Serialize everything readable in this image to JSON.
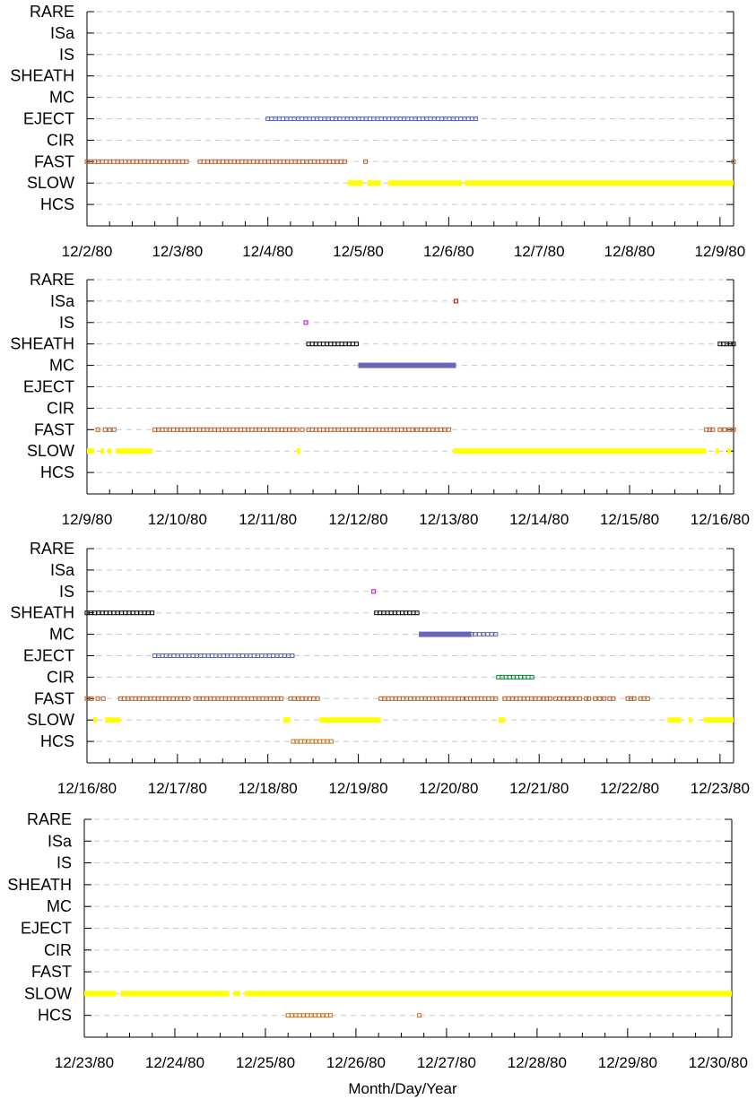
{
  "chart_data": {
    "type": "scatter",
    "xlabel": "Month/Day/Year",
    "categories": [
      "RARE",
      "ISa",
      "IS",
      "SHEATH",
      "MC",
      "EJECT",
      "CIR",
      "FAST",
      "SLOW",
      "HCS"
    ],
    "colors": {
      "RARE": "#808080",
      "ISa": "#c00000",
      "IS": "#cc00cc",
      "SHEATH": "#000000",
      "MC": "#6666bb",
      "EJECT": "#5566cc",
      "CIR": "#008a3a",
      "FAST": "#b5602a",
      "SLOW": "#ffff00",
      "HCS": "#c8741c"
    },
    "grid": true,
    "panels": [
      {
        "x_ticks": [
          "12/2/80",
          "12/3/80",
          "12/4/80",
          "12/5/80",
          "12/6/80",
          "12/7/80",
          "12/8/80",
          "12/9/80"
        ],
        "xlim_days": [
          0,
          7.15
        ],
        "intervals": [
          {
            "category": "EJECT",
            "start": 2.0,
            "end": 4.3,
            "style": "hollow"
          },
          {
            "category": "FAST",
            "start": 0.0,
            "end": 1.1,
            "style": "hollow"
          },
          {
            "category": "FAST",
            "start": 1.25,
            "end": 2.85,
            "style": "hollow"
          },
          {
            "category": "FAST",
            "start": 3.08,
            "end": 3.08,
            "style": "hollow"
          },
          {
            "category": "FAST",
            "start": 7.15,
            "end": 7.15,
            "style": "hollow"
          },
          {
            "category": "SLOW",
            "start": 2.88,
            "end": 3.05,
            "style": "solid"
          },
          {
            "category": "SLOW",
            "start": 3.1,
            "end": 3.25,
            "style": "solid"
          },
          {
            "category": "SLOW",
            "start": 3.33,
            "end": 4.15,
            "style": "solid"
          },
          {
            "category": "SLOW",
            "start": 4.18,
            "end": 7.15,
            "style": "solid"
          }
        ]
      },
      {
        "x_ticks": [
          "12/9/80",
          "12/10/80",
          "12/11/80",
          "12/12/80",
          "12/13/80",
          "12/14/80",
          "12/15/80",
          "12/16/80"
        ],
        "xlim_days": [
          0,
          7.15
        ],
        "intervals": [
          {
            "category": "ISa",
            "start": 4.08,
            "end": 4.08,
            "style": "hollow"
          },
          {
            "category": "IS",
            "start": 2.42,
            "end": 2.42,
            "style": "hollow"
          },
          {
            "category": "SHEATH",
            "start": 2.45,
            "end": 2.98,
            "style": "hollow"
          },
          {
            "category": "SHEATH",
            "start": 7.0,
            "end": 7.15,
            "style": "hollow"
          },
          {
            "category": "MC",
            "start": 3.0,
            "end": 4.08,
            "style": "solid"
          },
          {
            "category": "FAST",
            "start": 0.12,
            "end": 0.12,
            "style": "hollow"
          },
          {
            "category": "FAST",
            "start": 0.2,
            "end": 0.3,
            "style": "hollow"
          },
          {
            "category": "FAST",
            "start": 0.75,
            "end": 2.32,
            "style": "hollow"
          },
          {
            "category": "FAST",
            "start": 2.38,
            "end": 2.38,
            "style": "hollow"
          },
          {
            "category": "FAST",
            "start": 2.45,
            "end": 3.6,
            "style": "hollow"
          },
          {
            "category": "FAST",
            "start": 3.65,
            "end": 4.0,
            "style": "hollow"
          },
          {
            "category": "FAST",
            "start": 6.85,
            "end": 6.92,
            "style": "hollow"
          },
          {
            "category": "FAST",
            "start": 7.0,
            "end": 7.1,
            "style": "hollow"
          },
          {
            "category": "FAST",
            "start": 7.15,
            "end": 7.15,
            "style": "hollow"
          },
          {
            "category": "SLOW",
            "start": 0.0,
            "end": 0.08,
            "style": "solid"
          },
          {
            "category": "SLOW",
            "start": 0.15,
            "end": 0.18,
            "style": "solid"
          },
          {
            "category": "SLOW",
            "start": 0.23,
            "end": 0.27,
            "style": "solid"
          },
          {
            "category": "SLOW",
            "start": 0.32,
            "end": 0.72,
            "style": "solid"
          },
          {
            "category": "SLOW",
            "start": 2.32,
            "end": 2.35,
            "style": "solid"
          },
          {
            "category": "SLOW",
            "start": 4.05,
            "end": 6.85,
            "style": "solid"
          },
          {
            "category": "SLOW",
            "start": 6.95,
            "end": 6.97,
            "style": "solid"
          },
          {
            "category": "SLOW",
            "start": 7.08,
            "end": 7.12,
            "style": "solid"
          }
        ]
      },
      {
        "x_ticks": [
          "12/16/80",
          "12/17/80",
          "12/18/80",
          "12/19/80",
          "12/20/80",
          "12/21/80",
          "12/22/80",
          "12/23/80"
        ],
        "xlim_days": [
          0,
          7.15
        ],
        "intervals": [
          {
            "category": "IS",
            "start": 3.17,
            "end": 3.17,
            "style": "hollow"
          },
          {
            "category": "SHEATH",
            "start": 0.0,
            "end": 0.72,
            "style": "hollow"
          },
          {
            "category": "SHEATH",
            "start": 3.2,
            "end": 3.65,
            "style": "hollow"
          },
          {
            "category": "MC",
            "start": 3.67,
            "end": 4.25,
            "style": "solid"
          },
          {
            "category": "MC",
            "start": 4.25,
            "end": 4.52,
            "style": "hollow"
          },
          {
            "category": "EJECT",
            "start": 0.75,
            "end": 2.27,
            "style": "hollow"
          },
          {
            "category": "CIR",
            "start": 4.55,
            "end": 4.92,
            "style": "hollow"
          },
          {
            "category": "FAST",
            "start": 0.0,
            "end": 0.05,
            "style": "hollow"
          },
          {
            "category": "FAST",
            "start": 0.12,
            "end": 0.18,
            "style": "hollow"
          },
          {
            "category": "FAST",
            "start": 0.37,
            "end": 1.12,
            "style": "hollow"
          },
          {
            "category": "FAST",
            "start": 1.2,
            "end": 2.15,
            "style": "hollow"
          },
          {
            "category": "FAST",
            "start": 2.25,
            "end": 2.55,
            "style": "hollow"
          },
          {
            "category": "FAST",
            "start": 3.25,
            "end": 4.15,
            "style": "hollow"
          },
          {
            "category": "FAST",
            "start": 4.2,
            "end": 4.52,
            "style": "hollow"
          },
          {
            "category": "FAST",
            "start": 4.62,
            "end": 5.0,
            "style": "hollow"
          },
          {
            "category": "FAST",
            "start": 5.05,
            "end": 5.12,
            "style": "hollow"
          },
          {
            "category": "FAST",
            "start": 5.18,
            "end": 5.45,
            "style": "hollow"
          },
          {
            "category": "FAST",
            "start": 5.52,
            "end": 5.55,
            "style": "hollow"
          },
          {
            "category": "FAST",
            "start": 5.62,
            "end": 5.72,
            "style": "hollow"
          },
          {
            "category": "FAST",
            "start": 5.78,
            "end": 5.82,
            "style": "hollow"
          },
          {
            "category": "FAST",
            "start": 5.98,
            "end": 6.05,
            "style": "hollow"
          },
          {
            "category": "FAST",
            "start": 6.12,
            "end": 6.2,
            "style": "hollow"
          },
          {
            "category": "SLOW",
            "start": 0.07,
            "end": 0.1,
            "style": "solid"
          },
          {
            "category": "SLOW",
            "start": 0.2,
            "end": 0.37,
            "style": "solid"
          },
          {
            "category": "SLOW",
            "start": 2.17,
            "end": 2.25,
            "style": "solid"
          },
          {
            "category": "SLOW",
            "start": 2.57,
            "end": 3.25,
            "style": "solid"
          },
          {
            "category": "SLOW",
            "start": 4.55,
            "end": 4.62,
            "style": "solid"
          },
          {
            "category": "SLOW",
            "start": 6.42,
            "end": 6.57,
            "style": "solid"
          },
          {
            "category": "SLOW",
            "start": 6.65,
            "end": 6.68,
            "style": "solid"
          },
          {
            "category": "SLOW",
            "start": 6.82,
            "end": 7.15,
            "style": "solid"
          },
          {
            "category": "HCS",
            "start": 2.28,
            "end": 2.7,
            "style": "hollow"
          }
        ]
      },
      {
        "x_ticks": [
          "12/23/80",
          "12/24/80",
          "12/25/80",
          "12/26/80",
          "12/27/80",
          "12/28/80",
          "12/29/80",
          "12/30/80"
        ],
        "xlim_days": [
          0,
          7.15
        ],
        "intervals": [
          {
            "category": "SLOW",
            "start": 0.0,
            "end": 0.35,
            "style": "solid"
          },
          {
            "category": "SLOW",
            "start": 0.4,
            "end": 1.6,
            "style": "solid"
          },
          {
            "category": "SLOW",
            "start": 1.65,
            "end": 1.72,
            "style": "solid"
          },
          {
            "category": "SLOW",
            "start": 1.77,
            "end": 7.15,
            "style": "solid"
          },
          {
            "category": "HCS",
            "start": 2.25,
            "end": 2.72,
            "style": "hollow"
          },
          {
            "category": "HCS",
            "start": 3.7,
            "end": 3.7,
            "style": "hollow"
          }
        ]
      }
    ]
  }
}
